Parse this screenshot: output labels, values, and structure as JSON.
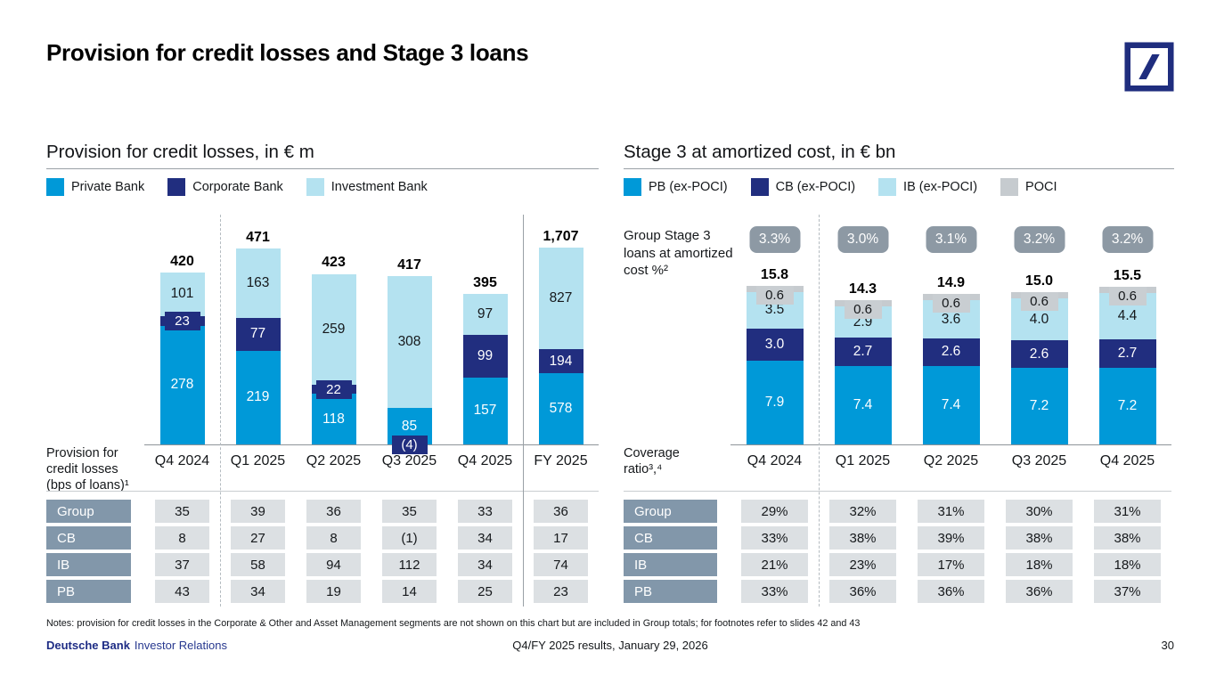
{
  "slide": {
    "title": "Provision for credit losses and Stage 3 loans",
    "notes": "Notes: provision for credit losses in the Corporate & Other and Asset Management segments are not shown on this chart but are included in Group totals; for footnotes refer to slides 42 and 43",
    "footer": {
      "brand": "Deutsche Bank",
      "brand_suffix": "Investor Relations",
      "center": "Q4/FY 2025 results, January 29, 2026",
      "page_number": "30"
    }
  },
  "colors": {
    "pb_blue": "#0099d8",
    "cb_navy": "#212e7f",
    "ib_light": "#b4e2f0",
    "poci_gray": "#c6cbcf",
    "pill_gray": "#8d99a4",
    "row_header_slate": "#8297aa",
    "cell_gray": "#dce0e3",
    "logo_navy": "#1f2d7e"
  },
  "chart_data": [
    {
      "type": "bar",
      "stacked": true,
      "title": "Provision for credit losses, in € m",
      "categories": [
        "Q4 2024",
        "Q1 2025",
        "Q2 2025",
        "Q3 2025",
        "Q4 2025",
        "FY 2025"
      ],
      "series": [
        {
          "name": "Private Bank",
          "color": "#0099d8",
          "text": "light",
          "values": [
            278,
            219,
            118,
            85,
            157,
            578
          ],
          "labels": [
            "278",
            "219",
            "118",
            "85",
            "157",
            "578"
          ]
        },
        {
          "name": "Corporate Bank",
          "color": "#212e7f",
          "text": "light",
          "values": [
            23,
            77,
            22,
            -4,
            99,
            194
          ],
          "labels": [
            "23",
            "77",
            "22",
            "(4)",
            "99",
            "194"
          ]
        },
        {
          "name": "Investment Bank",
          "color": "#b4e2f0",
          "text": "dark",
          "values": [
            101,
            163,
            259,
            308,
            97,
            827
          ],
          "labels": [
            "101",
            "163",
            "259",
            "308",
            "97",
            "827"
          ]
        }
      ],
      "totals": [
        "420",
        "471",
        "423",
        "417",
        "395",
        "1,707"
      ],
      "table": {
        "label_lines": [
          "Provision for",
          "credit losses",
          "(bps of loans)¹"
        ],
        "row_headers": [
          "Group",
          "CB",
          "IB",
          "PB"
        ],
        "rows": [
          [
            "35",
            "39",
            "36",
            "35",
            "33",
            "36"
          ],
          [
            "8",
            "27",
            "8",
            "(1)",
            "34",
            "17"
          ],
          [
            "37",
            "58",
            "94",
            "112",
            "34",
            "74"
          ],
          [
            "43",
            "34",
            "19",
            "14",
            "25",
            "23"
          ]
        ]
      },
      "separators": {
        "dashed_after_col": 0,
        "solid_after_col": 4
      }
    },
    {
      "type": "bar",
      "stacked": true,
      "title": "Stage 3 at amortized cost, in € bn",
      "categories": [
        "Q4 2024",
        "Q1 2025",
        "Q2 2025",
        "Q3 2025",
        "Q4 2025"
      ],
      "series": [
        {
          "name": "PB (ex-POCI)",
          "color": "#0099d8",
          "text": "light",
          "values": [
            7.9,
            7.4,
            7.4,
            7.2,
            7.2
          ],
          "labels": [
            "7.9",
            "7.4",
            "7.4",
            "7.2",
            "7.2"
          ]
        },
        {
          "name": "CB (ex-POCI)",
          "color": "#212e7f",
          "text": "light",
          "values": [
            3.0,
            2.7,
            2.6,
            2.6,
            2.7
          ],
          "labels": [
            "3.0",
            "2.7",
            "2.6",
            "2.6",
            "2.7"
          ]
        },
        {
          "name": "IB (ex-POCI)",
          "color": "#b4e2f0",
          "text": "dark",
          "values": [
            3.5,
            2.9,
            3.6,
            4.0,
            4.4
          ],
          "labels": [
            "3.5",
            "2.9",
            "3.6",
            "4.0",
            "4.4"
          ]
        },
        {
          "name": "POCI",
          "color": "#c6cbcf",
          "text": "dark",
          "values": [
            0.6,
            0.6,
            0.6,
            0.6,
            0.6
          ],
          "labels": [
            "0.6",
            "0.6",
            "0.6",
            "0.6",
            "0.6"
          ]
        }
      ],
      "totals": [
        "15.8",
        "14.3",
        "14.9",
        "15.0",
        "15.5"
      ],
      "ratio_pills": [
        "3.3%",
        "3.0%",
        "3.1%",
        "3.2%",
        "3.2%"
      ],
      "ratio_label_lines": [
        "Group Stage 3",
        "loans at amortized",
        "cost %²"
      ],
      "table": {
        "label_lines": [
          "Coverage",
          "ratio³,⁴"
        ],
        "row_headers": [
          "Group",
          "CB",
          "IB",
          "PB"
        ],
        "rows": [
          [
            "29%",
            "32%",
            "31%",
            "30%",
            "31%"
          ],
          [
            "33%",
            "38%",
            "39%",
            "38%",
            "38%"
          ],
          [
            "21%",
            "23%",
            "17%",
            "18%",
            "18%"
          ],
          [
            "33%",
            "36%",
            "36%",
            "36%",
            "37%"
          ]
        ]
      },
      "separators": {
        "dashed_after_col": 0
      }
    }
  ]
}
